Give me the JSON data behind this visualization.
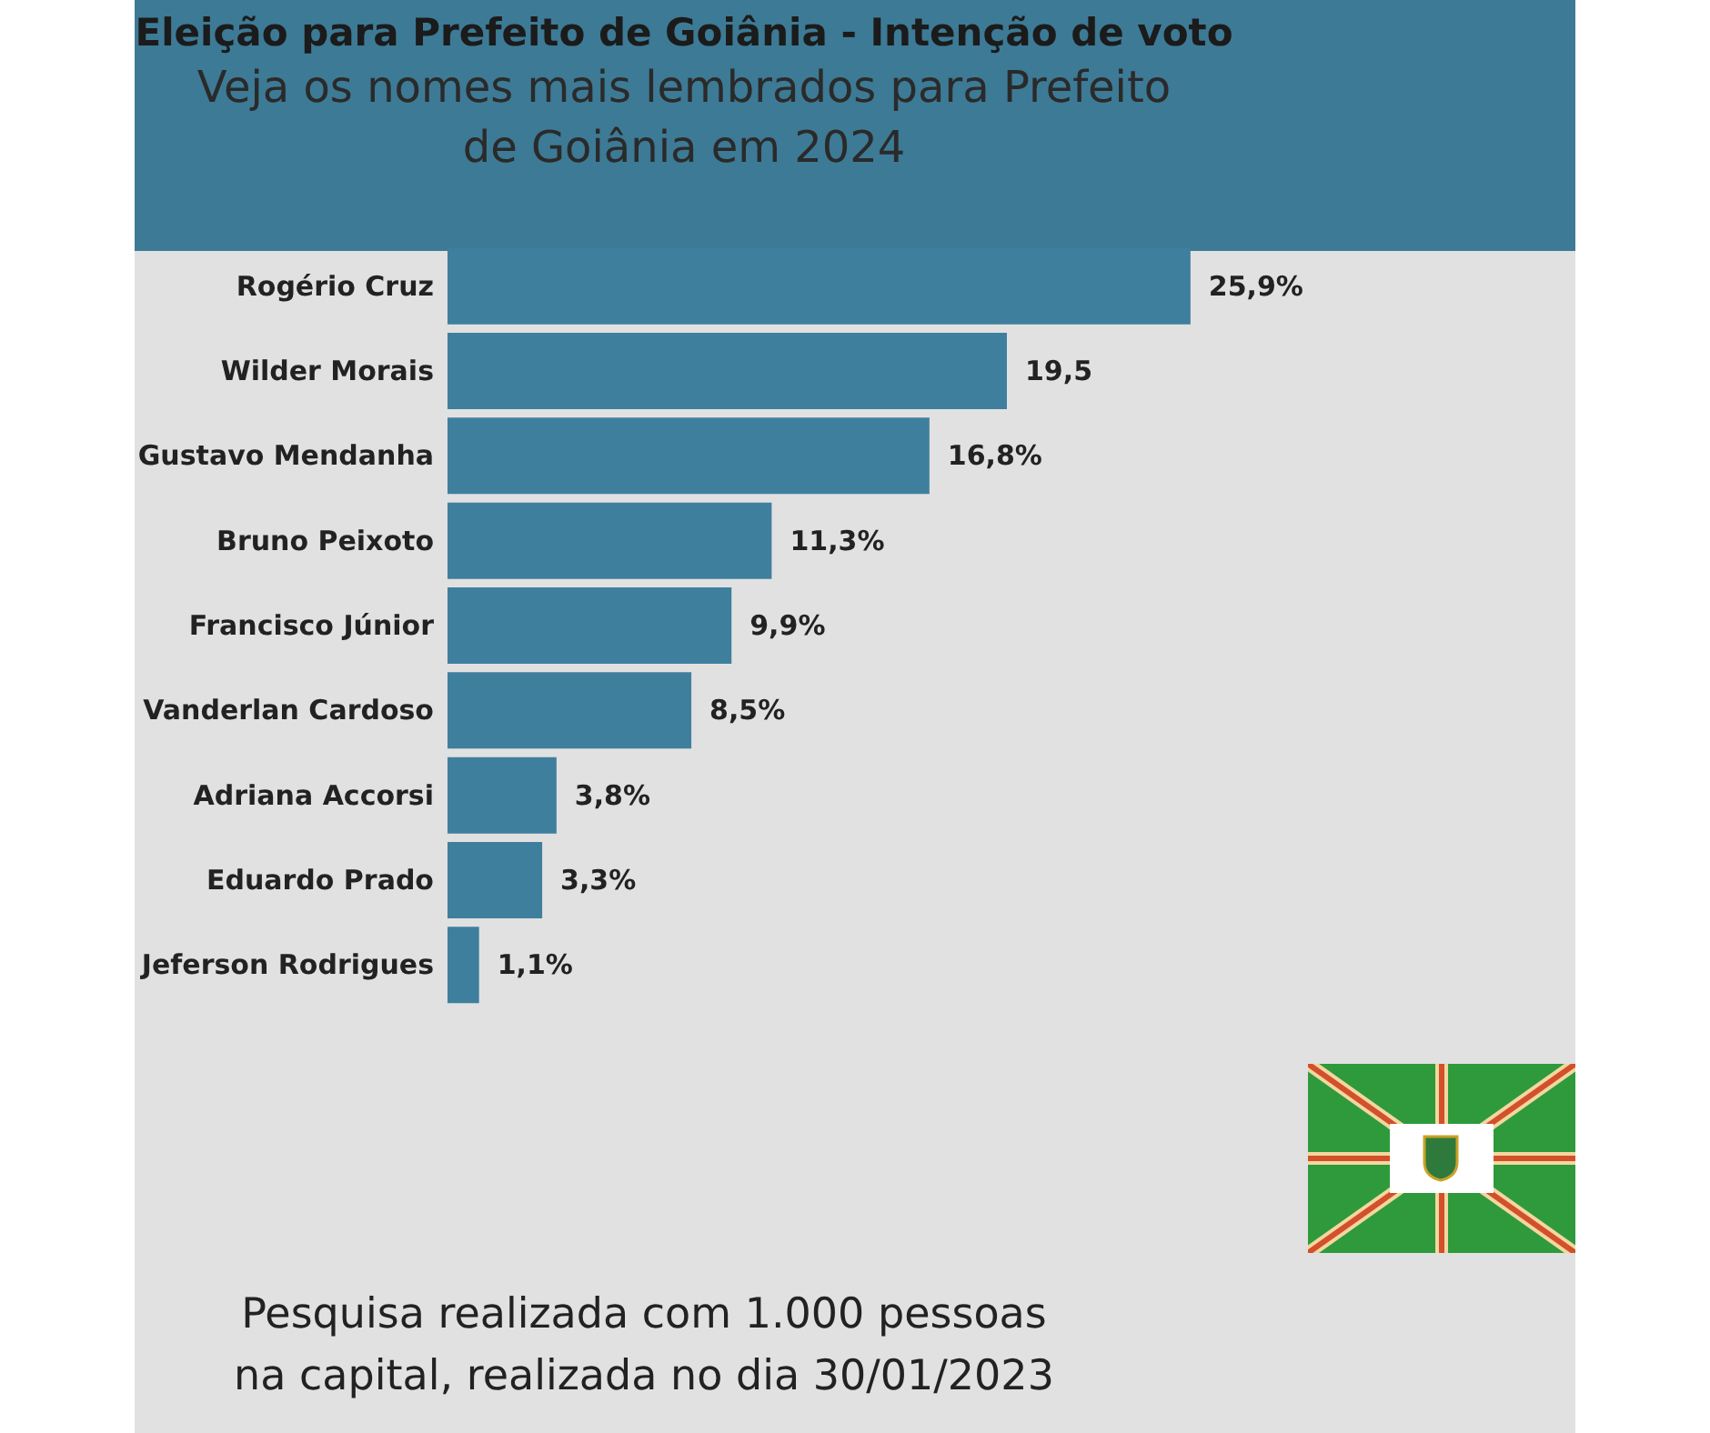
{
  "chart_data": {
    "type": "bar",
    "orientation": "horizontal",
    "title": "Eleição para Prefeito de Goiânia - Intenção de voto",
    "subtitle": "Veja os nomes mais lembrados para Prefeito\nde Goiânia em 2024",
    "categories": [
      "Rogério Cruz",
      "Wilder Morais",
      "Gustavo Mendanha",
      "Bruno Peixoto",
      "Francisco Júnior",
      "Vanderlan Cardoso",
      "Adriana Accorsi",
      "Eduardo Prado",
      "Jeferson Rodrigues"
    ],
    "values": [
      25.9,
      19.5,
      16.8,
      11.3,
      9.9,
      8.5,
      3.8,
      3.3,
      1.1
    ],
    "value_labels": [
      "25,9%",
      "19,5",
      "16,8%",
      "11,3%",
      "9,9%",
      "8,5%",
      "3,8%",
      "3,3%",
      "1,1%"
    ],
    "color": "#3f7f9e",
    "annotations": [
      "Pesquisa realizada com 1.000 pessoas\nna capital, realizada no dia 30/01/2023"
    ]
  }
}
